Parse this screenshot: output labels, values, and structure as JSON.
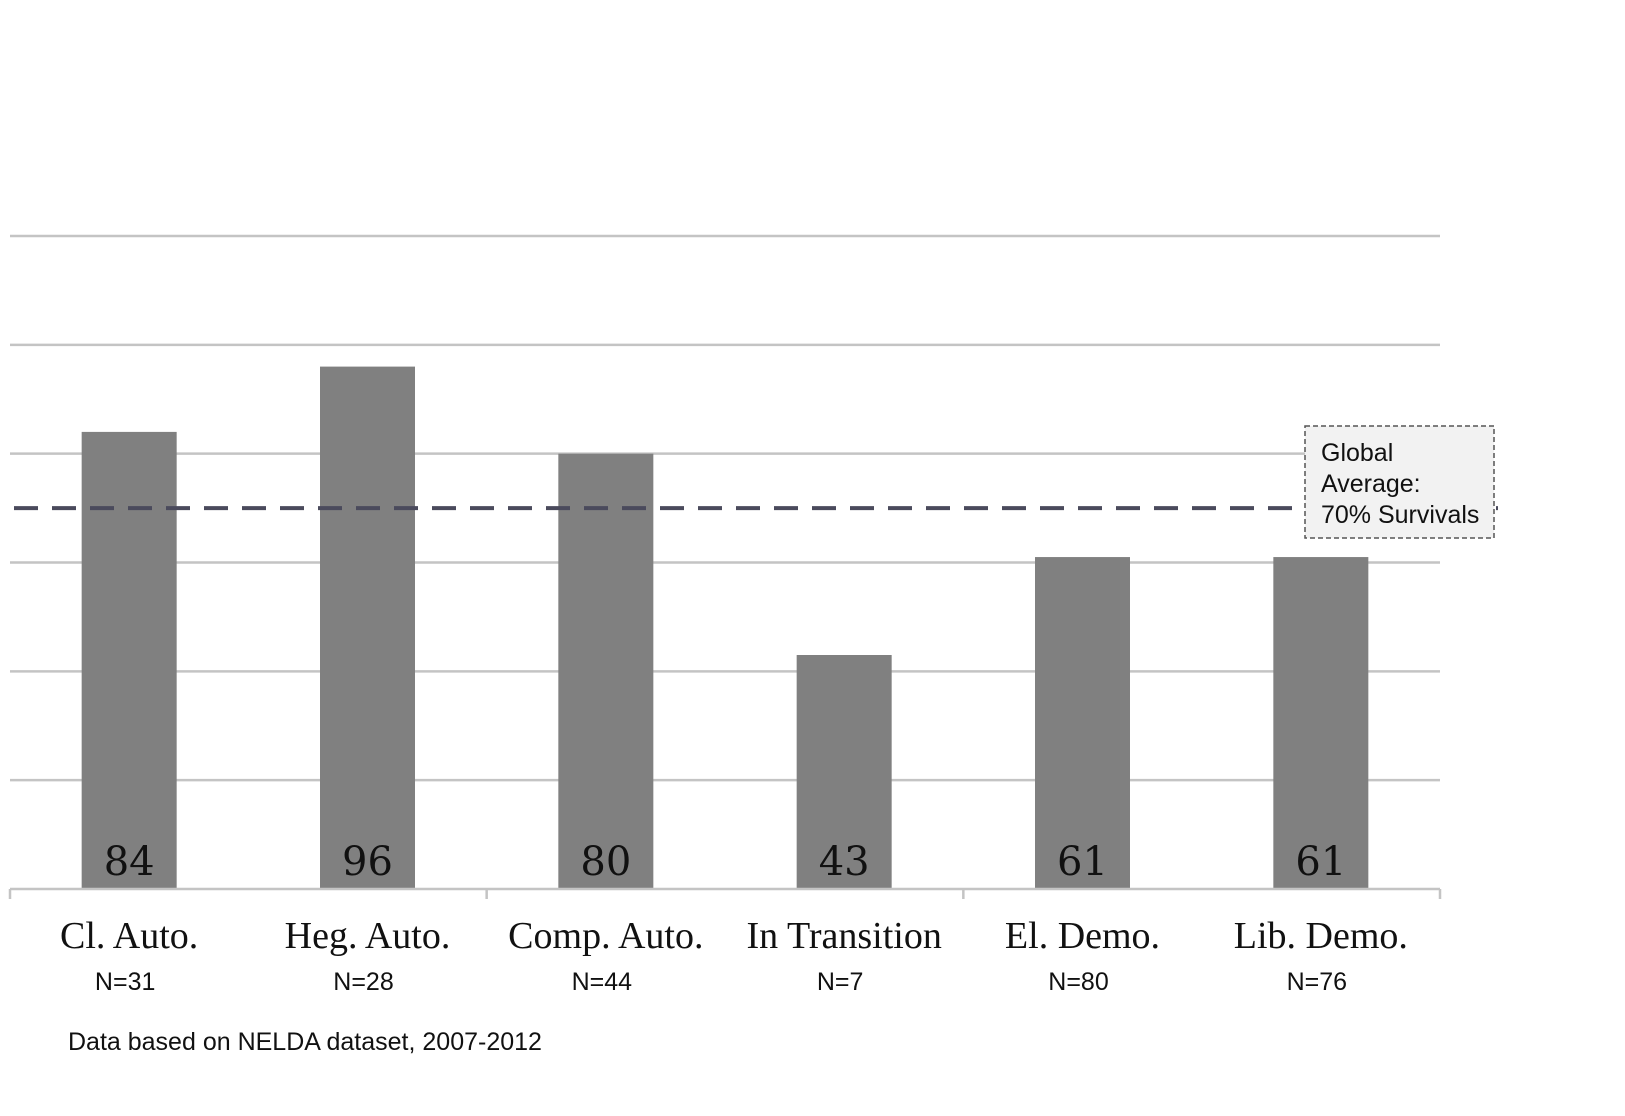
{
  "chart_data": {
    "type": "bar",
    "categories": [
      "Cl. Auto.",
      "Heg. Auto.",
      "Comp. Auto.",
      "In Transition",
      "El. Demo.",
      "Lib. Demo."
    ],
    "sample_sizes": [
      "N=31",
      "N=28",
      "N=44",
      "N=7",
      "N=80",
      "N=76"
    ],
    "values": [
      84,
      96,
      80,
      43,
      61,
      61
    ],
    "ylim": [
      0,
      120
    ],
    "gridline_step": 20,
    "grid": true,
    "reference_line": {
      "value": 70,
      "style": "dashed",
      "label_lines": [
        "Global",
        "Average:",
        "70% Survivals"
      ]
    },
    "source_note": "Data based on NELDA dataset, 2007-2012",
    "colors": {
      "bar": "#808080",
      "grid": "#c4c4c4",
      "reference": "#4a4a5c"
    }
  }
}
